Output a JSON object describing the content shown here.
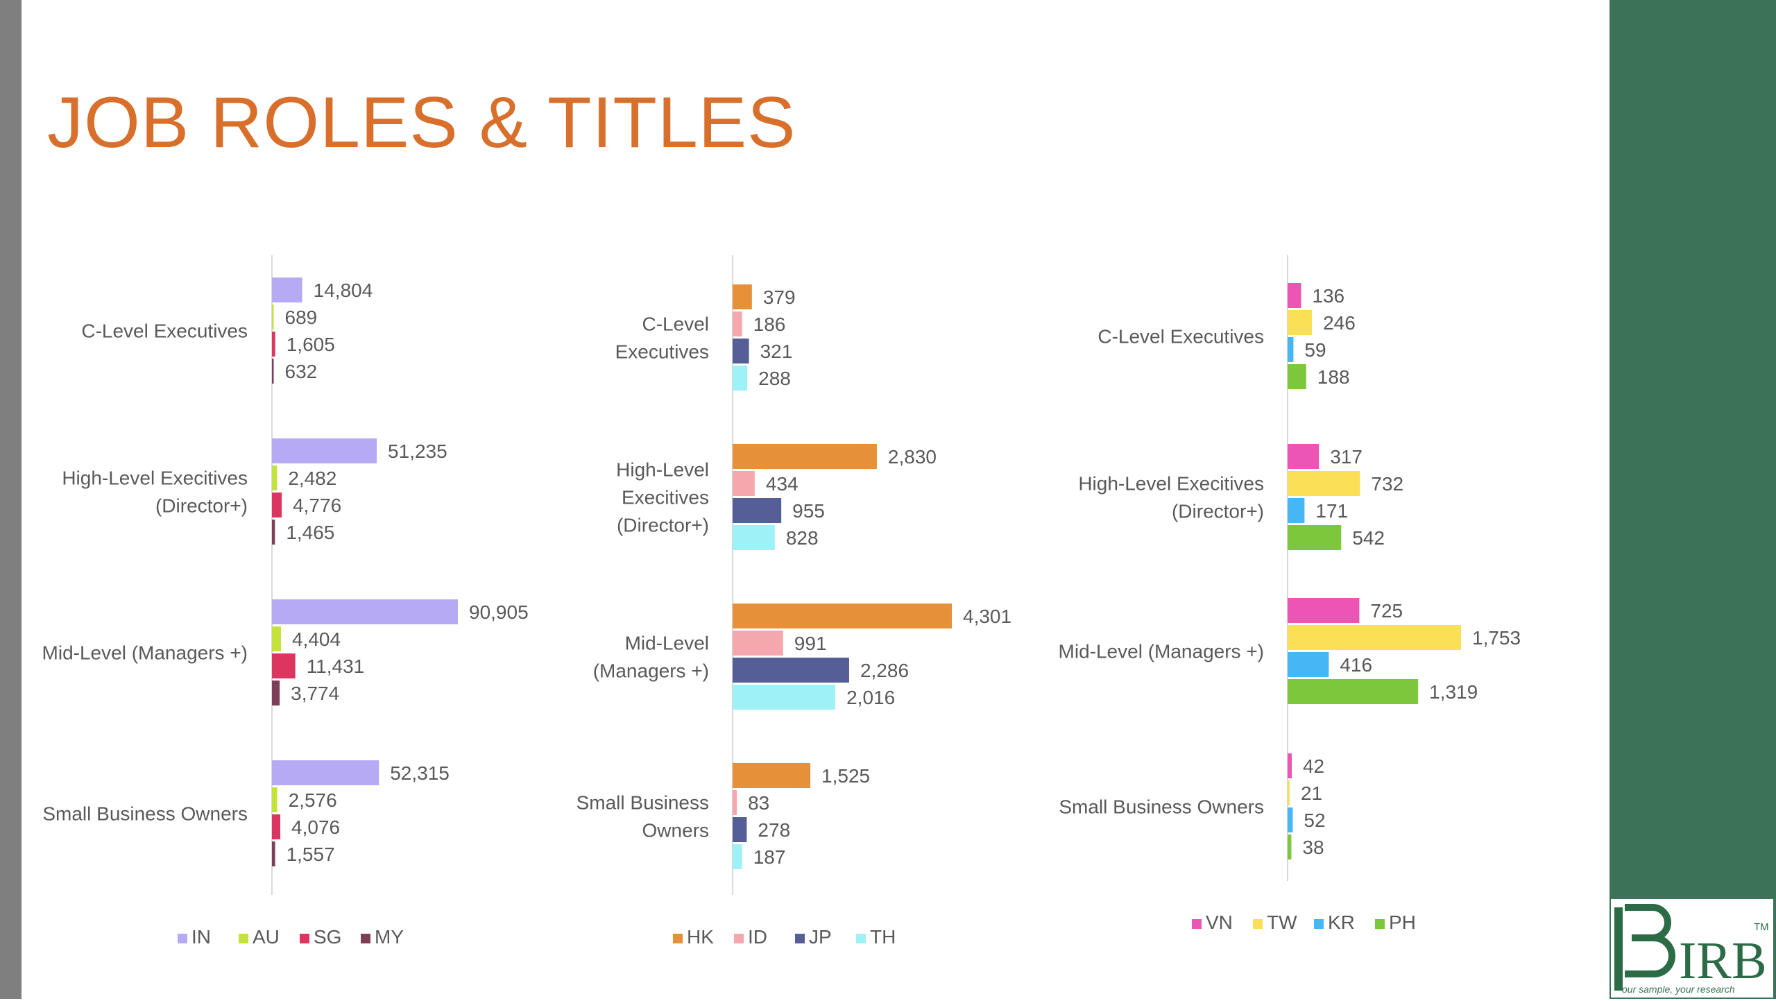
{
  "title": "JOB ROLES & TITLES",
  "logo": {
    "text": "IRB",
    "tm": "TM",
    "tagline": "our sample, your research"
  },
  "colors": {
    "IN": "#b6aaf5",
    "AU": "#c3e23c",
    "SG": "#dc3560",
    "MY": "#7d3f58",
    "HK": "#e6903a",
    "ID": "#f4a8ae",
    "JP": "#555e96",
    "TH": "#9ef2f7",
    "VN": "#ec55b3",
    "TW": "#fbdf57",
    "KR": "#46b7f4",
    "PH": "#7dc73d"
  },
  "chart_data": [
    {
      "type": "bar",
      "orientation": "horizontal",
      "categories": [
        "C-Level Executives",
        "High-Level Execitives (Director+)",
        "Mid-Level (Managers +)",
        "Small Business Owners"
      ],
      "series": [
        {
          "name": "IN",
          "values": [
            14804,
            51235,
            90905,
            52315
          ]
        },
        {
          "name": "AU",
          "values": [
            689,
            2482,
            4404,
            2576
          ]
        },
        {
          "name": "SG",
          "values": [
            1605,
            4776,
            11431,
            4076
          ]
        },
        {
          "name": "MY",
          "values": [
            632,
            1465,
            3774,
            1557
          ]
        }
      ],
      "data_labels": true,
      "legend": "bottom"
    },
    {
      "type": "bar",
      "orientation": "horizontal",
      "categories": [
        "C-Level Executives",
        "High-Level Execitives (Director+)",
        "Mid-Level (Managers +)",
        "Small Business Owners"
      ],
      "series": [
        {
          "name": "HK",
          "values": [
            379,
            2830,
            4301,
            1525
          ]
        },
        {
          "name": "ID",
          "values": [
            186,
            434,
            991,
            83
          ]
        },
        {
          "name": "JP",
          "values": [
            321,
            955,
            2286,
            278
          ]
        },
        {
          "name": "TH",
          "values": [
            288,
            828,
            2016,
            187
          ]
        }
      ],
      "data_labels": true,
      "legend": "bottom"
    },
    {
      "type": "bar",
      "orientation": "horizontal",
      "categories": [
        "C-Level Executives",
        "High-Level Execitives (Director+)",
        "Mid-Level (Managers +)",
        "Small Business Owners"
      ],
      "series": [
        {
          "name": "VN",
          "values": [
            136,
            317,
            725,
            42
          ]
        },
        {
          "name": "TW",
          "values": [
            246,
            732,
            1753,
            21
          ]
        },
        {
          "name": "KR",
          "values": [
            59,
            171,
            416,
            52
          ]
        },
        {
          "name": "PH",
          "values": [
            188,
            542,
            1319,
            38
          ]
        }
      ],
      "data_labels": true,
      "legend": "bottom"
    }
  ]
}
